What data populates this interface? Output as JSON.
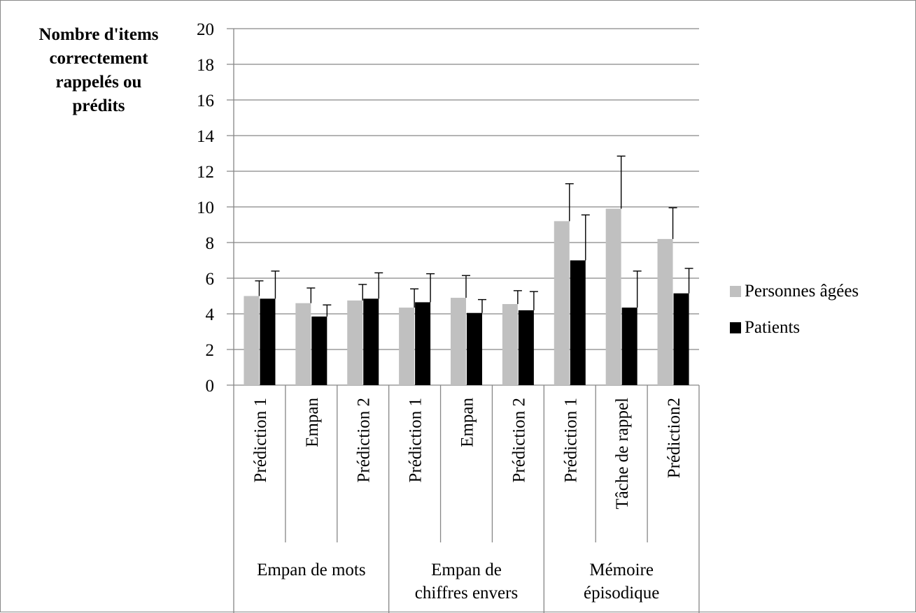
{
  "chart_data": {
    "type": "bar",
    "ylabel_lines": [
      "Nombre d'items",
      "correctement",
      "rappelés ou",
      "prédits"
    ],
    "ylim": [
      0,
      20
    ],
    "yticks": [
      0,
      2,
      4,
      6,
      8,
      10,
      12,
      14,
      16,
      18,
      20
    ],
    "grid": true,
    "legend_position": "right",
    "categories": [
      "Prédiction 1",
      "Empan",
      "Prédiction 2",
      "Prédiction 1",
      "Empan",
      "Prédiction 2",
      "Prédiction 1",
      "Tâche de rappel",
      "Prédiction2"
    ],
    "groups": [
      {
        "lines": [
          "Empan de mots"
        ],
        "span": 3
      },
      {
        "lines": [
          "Empan de",
          "chiffres envers"
        ],
        "span": 3
      },
      {
        "lines": [
          "Mémoire",
          "épisodique"
        ],
        "span": 3
      }
    ],
    "series": [
      {
        "name": "Personnes âgées",
        "color": "#c0c0c0",
        "values": [
          5.0,
          4.6,
          4.75,
          4.35,
          4.9,
          4.55,
          9.2,
          9.9,
          8.2
        ],
        "errors": [
          0.85,
          0.85,
          0.9,
          1.05,
          1.25,
          0.75,
          2.1,
          2.95,
          1.75
        ]
      },
      {
        "name": "Patients",
        "color": "#000000",
        "values": [
          4.85,
          3.85,
          4.85,
          4.65,
          4.05,
          4.2,
          7.0,
          4.35,
          5.15
        ],
        "errors": [
          1.55,
          0.65,
          1.45,
          1.6,
          0.75,
          1.05,
          2.55,
          2.05,
          1.4
        ]
      }
    ]
  }
}
